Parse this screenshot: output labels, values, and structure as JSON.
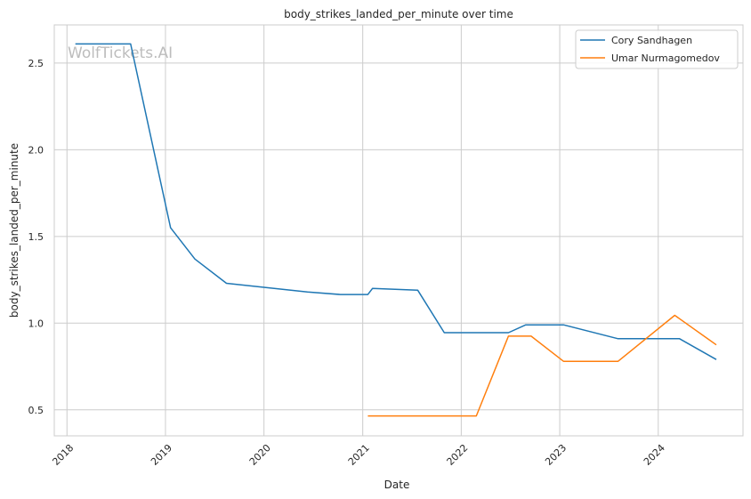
{
  "chart_data": {
    "type": "line",
    "title": "body_strikes_landed_per_minute over time",
    "xlabel": "Date",
    "ylabel": "body_strikes_landed_per_minute",
    "watermark": "WolfTickets.AI",
    "x_ticks": [
      "2018",
      "2019",
      "2020",
      "2021",
      "2022",
      "2023",
      "2024"
    ],
    "y_ticks": [
      "0.5",
      "1.0",
      "1.5",
      "2.0",
      "2.5"
    ],
    "xlim": [
      "2017-11-15",
      "2024-11-10"
    ],
    "ylim": [
      0.35,
      2.72
    ],
    "grid": true,
    "legend_position": "top-right",
    "series": [
      {
        "name": "Cory Sandhagen",
        "color": "#1f77b4",
        "points": [
          [
            "2018-02-01",
            2.61
          ],
          [
            "2018-08-25",
            2.61
          ],
          [
            "2019-01-20",
            1.55
          ],
          [
            "2019-04-20",
            1.37
          ],
          [
            "2019-08-15",
            1.23
          ],
          [
            "2020-06-10",
            1.18
          ],
          [
            "2020-10-10",
            1.165
          ],
          [
            "2021-01-20",
            1.165
          ],
          [
            "2021-02-06",
            1.2
          ],
          [
            "2021-07-24",
            1.19
          ],
          [
            "2021-10-30",
            0.945
          ],
          [
            "2022-06-25",
            0.945
          ],
          [
            "2022-08-28",
            0.99
          ],
          [
            "2023-01-15",
            0.99
          ],
          [
            "2023-08-05",
            0.91
          ],
          [
            "2024-03-20",
            0.91
          ],
          [
            "2024-08-03",
            0.79
          ]
        ]
      },
      {
        "name": "Umar Nurmagomedov",
        "color": "#ff7f0e",
        "points": [
          [
            "2021-01-20",
            0.465
          ],
          [
            "2022-02-26",
            0.465
          ],
          [
            "2022-06-25",
            0.925
          ],
          [
            "2022-09-17",
            0.925
          ],
          [
            "2023-01-15",
            0.78
          ],
          [
            "2023-08-05",
            0.78
          ],
          [
            "2024-03-02",
            1.045
          ],
          [
            "2024-08-03",
            0.875
          ]
        ]
      }
    ]
  }
}
